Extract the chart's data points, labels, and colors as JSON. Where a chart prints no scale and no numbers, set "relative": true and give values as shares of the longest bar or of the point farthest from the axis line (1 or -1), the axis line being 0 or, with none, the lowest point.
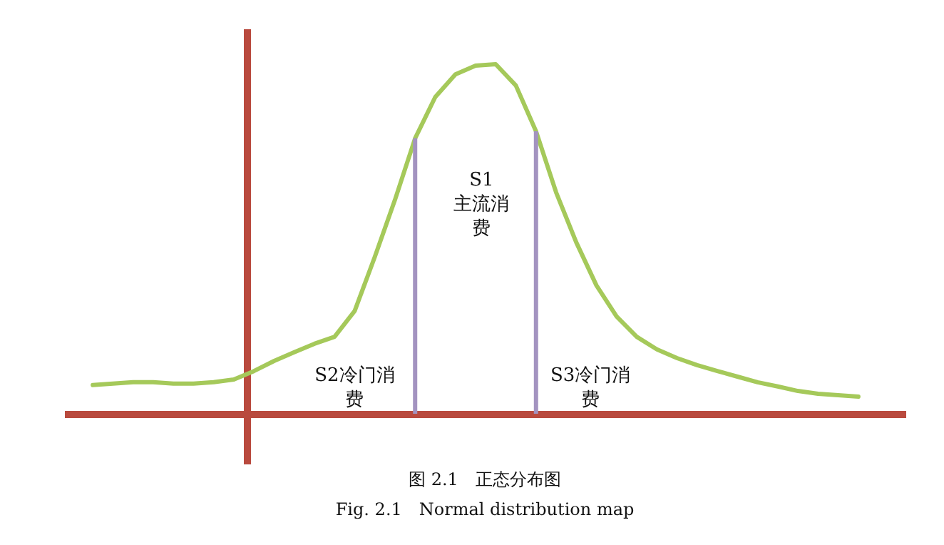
{
  "chart_data": {
    "type": "line",
    "relative": true,
    "categories": [
      null,
      null,
      null,
      null,
      null,
      null,
      null,
      null,
      null,
      null,
      null,
      null,
      null,
      null,
      null,
      null,
      null,
      null,
      null,
      null,
      null,
      null,
      null,
      null,
      null,
      null,
      null,
      null,
      null,
      null,
      null,
      null,
      null,
      null,
      null,
      null,
      null,
      null,
      null
    ],
    "series": [
      {
        "color": "#a5c95a",
        "values": [
          0.082,
          0.086,
          0.09,
          0.09,
          0.086,
          0.086,
          0.09,
          0.098,
          0.122,
          0.151,
          0.176,
          0.2,
          0.22,
          0.294,
          0.449,
          0.612,
          0.788,
          0.906,
          0.971,
          0.996,
          1.0,
          0.939,
          0.808,
          0.633,
          0.49,
          0.367,
          0.278,
          0.22,
          0.184,
          0.159,
          0.139,
          0.122,
          0.106,
          0.09,
          0.078,
          0.065,
          0.057,
          0.053,
          0.049
        ]
      }
    ],
    "annotations": [
      "S1主流消费",
      "S2冷门消费",
      "S3冷门消费",
      "图 2.1　正态分布图",
      "Fig. 2.1　Normal distribution map"
    ]
  }
}
